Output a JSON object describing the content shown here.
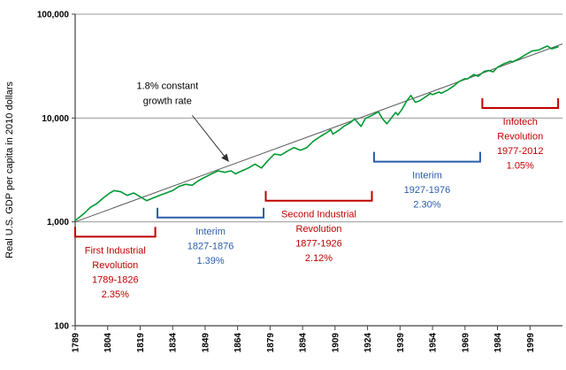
{
  "page": {
    "background": "#ffffff"
  },
  "chart_data": {
    "type": "line",
    "title": "",
    "xlabel": "",
    "ylabel": "Real U.S. GDP per capita in 2010 dollars",
    "y_scale": "log",
    "ylim": [
      100,
      100000
    ],
    "xlim": [
      1789,
      2014
    ],
    "grid": "horizontal",
    "legend": "none",
    "colors": {
      "gdp_line": "#009933",
      "trend_line": "#595959",
      "grid": "#9a9a9a",
      "axis": "#404040",
      "red": "#c00000",
      "blue": "#2a5caa",
      "annotation_text": "#000000"
    },
    "y_ticks": [
      {
        "value": 100000,
        "label": "100,000"
      },
      {
        "value": 10000,
        "label": "10,000"
      },
      {
        "value": 1000,
        "label": "1,000"
      },
      {
        "value": 100,
        "label": "100"
      }
    ],
    "x_ticks": [
      1789,
      1804,
      1819,
      1834,
      1849,
      1864,
      1879,
      1894,
      1909,
      1924,
      1939,
      1954,
      1969,
      1984,
      1999
    ],
    "series": [
      {
        "name": "Real U.S. GDP per capita",
        "color_key": "gdp_line",
        "x": [
          1789,
          1793,
          1796,
          1799,
          1802,
          1805,
          1807,
          1810,
          1813,
          1816,
          1819,
          1822,
          1825,
          1828,
          1831,
          1834,
          1837,
          1840,
          1843,
          1846,
          1849,
          1852,
          1855,
          1858,
          1861,
          1863,
          1866,
          1869,
          1872,
          1875,
          1878,
          1881,
          1884,
          1887,
          1890,
          1893,
          1896,
          1899,
          1902,
          1905,
          1907,
          1908,
          1911,
          1913,
          1916,
          1918,
          1921,
          1923,
          1926,
          1929,
          1931,
          1933,
          1935,
          1937,
          1938,
          1940,
          1942,
          1944,
          1946,
          1948,
          1950,
          1953,
          1954,
          1957,
          1958,
          1961,
          1964,
          1966,
          1969,
          1970,
          1973,
          1975,
          1978,
          1980,
          1982,
          1984,
          1987,
          1990,
          1991,
          1994,
          1997,
          2000,
          2003,
          2007,
          2009,
          2012
        ],
        "y": [
          1030,
          1200,
          1380,
          1500,
          1700,
          1900,
          2000,
          1950,
          1800,
          1900,
          1750,
          1600,
          1700,
          1800,
          1900,
          2000,
          2200,
          2300,
          2250,
          2500,
          2700,
          2900,
          3100,
          3000,
          3100,
          2900,
          3100,
          3300,
          3600,
          3300,
          3900,
          4500,
          4400,
          4800,
          5200,
          4900,
          5200,
          6000,
          6600,
          7200,
          7700,
          7000,
          7700,
          8300,
          9000,
          9800,
          8300,
          9900,
          10600,
          11500,
          9800,
          8800,
          10000,
          11300,
          10700,
          12200,
          14500,
          16500,
          14200,
          14600,
          15600,
          17200,
          16800,
          17800,
          17300,
          18600,
          20500,
          22300,
          23900,
          23700,
          26300,
          25200,
          28200,
          28700,
          27800,
          30800,
          33300,
          35300,
          34700,
          37300,
          40800,
          44200,
          45200,
          49300,
          46300,
          48500
        ]
      }
    ],
    "trend_line": {
      "name": "1.8% constant growth rate",
      "color_key": "trend_line",
      "x1": 1789,
      "y1": 1000,
      "x2": 2014,
      "y2": 51700
    },
    "annotations": {
      "growth_note": {
        "lines": [
          "1.8% constant",
          "growth rate"
        ],
        "arrow_to": {
          "x": 1861,
          "y": 3540
        }
      },
      "brackets": [
        {
          "start": 1789,
          "end": 1826,
          "line_value": 720,
          "color_key": "red",
          "lines": [
            "First Industrial",
            "Revolution",
            "1789-1826",
            "2.35%"
          ]
        },
        {
          "start": 1827,
          "end": 1876,
          "line_value": 1100,
          "color_key": "blue",
          "lines": [
            "Interim",
            "1827-1876",
            "1.39%"
          ]
        },
        {
          "start": 1877,
          "end": 1926,
          "line_value": 1600,
          "color_key": "red",
          "lines": [
            "Second Industrial",
            "Revolution",
            "1877-1926",
            "2.12%"
          ]
        },
        {
          "start": 1927,
          "end": 1976,
          "line_value": 3800,
          "color_key": "blue",
          "lines": [
            "Interim",
            "1927-1976",
            "2.30%"
          ]
        },
        {
          "start": 1977,
          "end": 2012,
          "line_value": 12500,
          "color_key": "red",
          "lines": [
            "Infotech",
            "Revolution",
            "1977-2012",
            "1.05%"
          ]
        }
      ]
    }
  }
}
